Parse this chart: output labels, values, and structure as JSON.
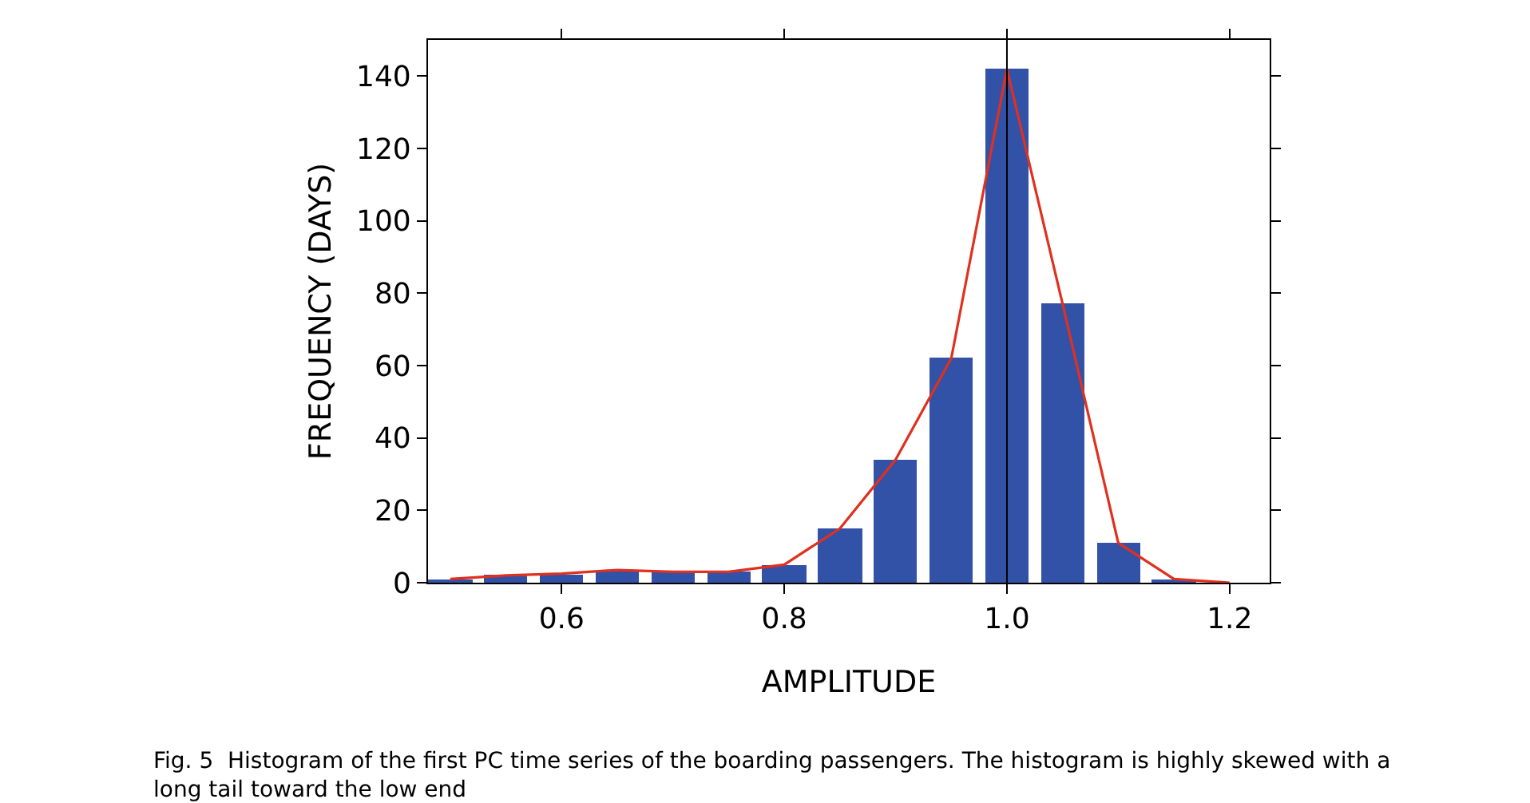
{
  "chart_data": {
    "type": "histogram",
    "xlabel": "AMPLITUDE",
    "ylabel": "FREQUENCY (DAYS)",
    "bins": [
      0.475,
      0.525,
      0.575,
      0.625,
      0.675,
      0.725,
      0.775,
      0.825,
      0.875,
      0.925,
      0.975,
      1.025,
      1.075,
      1.125,
      1.175
    ],
    "values": [
      1,
      2,
      2,
      3,
      3,
      3,
      5,
      15,
      34,
      62,
      142,
      77,
      11,
      1
    ],
    "color": "#3252a8",
    "series": [
      {
        "type": "line",
        "x": [
          0.5,
          0.55,
          0.6,
          0.65,
          0.7,
          0.75,
          0.8,
          0.85,
          0.9,
          0.95,
          1.0,
          1.05,
          1.1,
          1.15,
          1.2
        ],
        "values": [
          1,
          2,
          2.5,
          3.5,
          3,
          3,
          5,
          15,
          34,
          62,
          142,
          77,
          11,
          1,
          0
        ],
        "color": "#e0301e"
      }
    ],
    "ref_lines": [
      {
        "axis": "x",
        "value": 1.0,
        "color": "#000000"
      }
    ],
    "xlim": [
      0.48,
      1.236
    ],
    "xticks": [
      {
        "value": 0.6,
        "label": "0.6"
      },
      {
        "value": 0.8,
        "label": "0.8"
      },
      {
        "value": 1.0,
        "label": "1.0"
      },
      {
        "value": 1.2,
        "label": "1.2"
      }
    ],
    "ylim": [
      0,
      150
    ],
    "yticks": [
      0,
      20,
      40,
      60,
      80,
      100,
      120,
      140
    ],
    "annotations": [
      "Fig. 5  Histogram of the first PC time series of the boarding passengers. The histogram is highly skewed with a long tail toward the low end"
    ]
  }
}
